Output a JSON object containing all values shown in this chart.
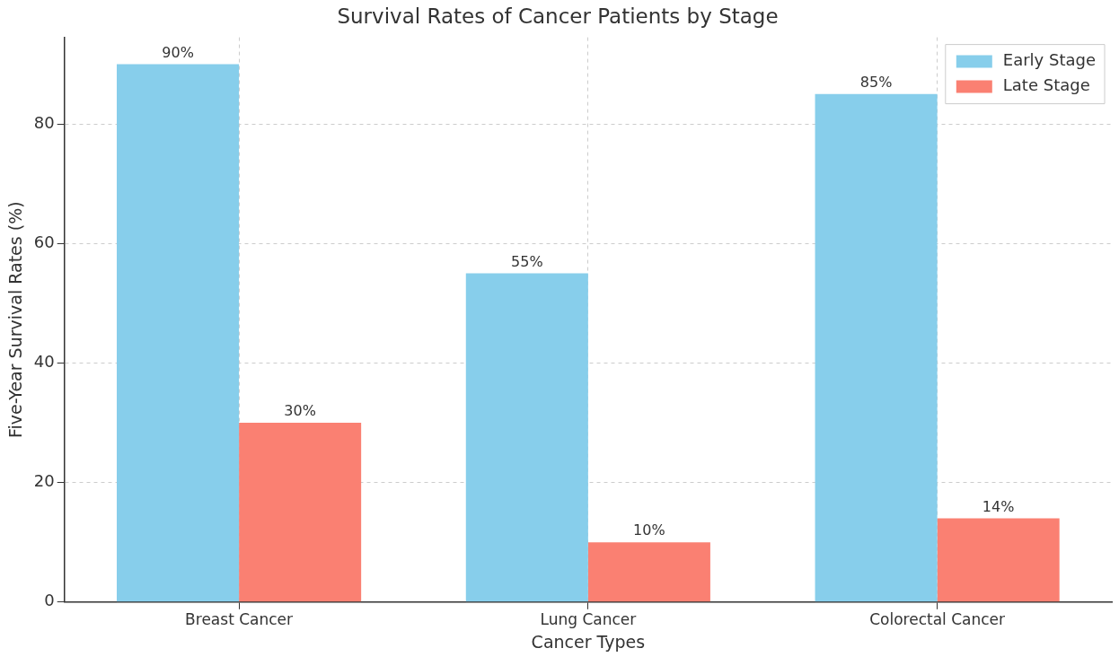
{
  "chart_data": {
    "type": "bar",
    "title": "Survival Rates of Cancer Patients by Stage",
    "xlabel": "Cancer Types",
    "ylabel": "Five-Year Survival Rates (%)",
    "categories": [
      "Breast Cancer",
      "Lung Cancer",
      "Colorectal Cancer"
    ],
    "series": [
      {
        "name": "Early Stage",
        "color": "#87ceeb",
        "values": [
          90,
          55,
          85
        ],
        "value_labels": [
          "90%",
          "55%",
          "85%"
        ]
      },
      {
        "name": "Late Stage",
        "color": "#fa8072",
        "values": [
          30,
          10,
          14
        ],
        "value_labels": [
          "30%",
          "10%",
          "14%"
        ]
      }
    ],
    "ylim": [
      0,
      94.5
    ],
    "yticks": [
      0,
      20,
      40,
      60,
      80
    ],
    "grid": true,
    "legend": "top right"
  }
}
